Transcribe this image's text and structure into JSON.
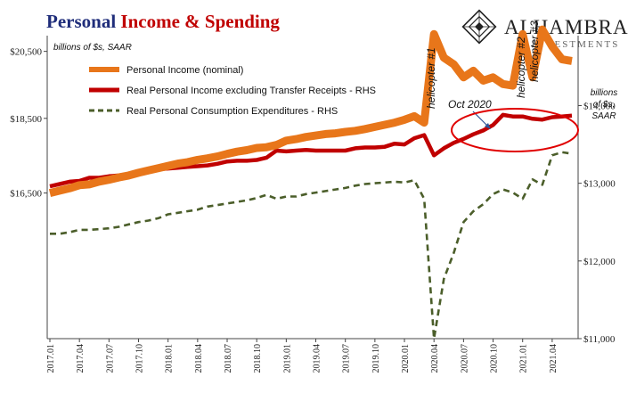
{
  "header": {
    "title_part1": "Personal ",
    "title_part2": "Income & Spending",
    "title_color1": "#1f2d7a",
    "title_color2": "#c00000",
    "logo_text": "ALHAMBRA",
    "logo_sub": "INVESTMENTS"
  },
  "chart_data": {
    "type": "line",
    "left_axis_units": "billions of $s, SAAR",
    "right_axis_units": [
      "billions",
      "of $s,",
      "SAAR"
    ],
    "left_ticks": [
      "$20,500",
      "$18,500",
      "$16,500"
    ],
    "right_ticks": [
      "$14,000",
      "$13,000",
      "$12,000",
      "$11,000"
    ],
    "x_ticks": [
      "2017.01",
      "2017.04",
      "2017.07",
      "2017.10",
      "2018.01",
      "2018.04",
      "2018.07",
      "2018.10",
      "2019.01",
      "2019.04",
      "2019.07",
      "2019.10",
      "2020.01",
      "2020.04",
      "2020.07",
      "2020.10",
      "2021.01",
      "2021.04"
    ],
    "left_axis": {
      "min": 13200,
      "max": 21000,
      "log": true,
      "ticks": [
        20500,
        18500,
        16500
      ]
    },
    "right_axis": {
      "min": 11000,
      "max": 14900,
      "ticks": [
        14000,
        13000,
        12000,
        11000
      ]
    },
    "x": [
      "2017.01",
      "2017.02",
      "2017.03",
      "2017.04",
      "2017.05",
      "2017.06",
      "2017.07",
      "2017.08",
      "2017.09",
      "2017.10",
      "2017.11",
      "2017.12",
      "2018.01",
      "2018.02",
      "2018.03",
      "2018.04",
      "2018.05",
      "2018.06",
      "2018.07",
      "2018.08",
      "2018.09",
      "2018.10",
      "2018.11",
      "2018.12",
      "2019.01",
      "2019.02",
      "2019.03",
      "2019.04",
      "2019.05",
      "2019.06",
      "2019.07",
      "2019.08",
      "2019.09",
      "2019.10",
      "2019.11",
      "2019.12",
      "2020.01",
      "2020.02",
      "2020.03",
      "2020.04",
      "2020.05",
      "2020.06",
      "2020.07",
      "2020.08",
      "2020.09",
      "2020.10",
      "2020.11",
      "2020.12",
      "2021.01",
      "2021.02",
      "2021.03",
      "2021.04",
      "2021.05",
      "2021.06"
    ],
    "series": [
      {
        "name": "Personal Income (nominal)",
        "axis": "left",
        "color": "#e8761a",
        "style": "solid",
        "values": [
          16500,
          16560,
          16620,
          16700,
          16720,
          16790,
          16840,
          16900,
          16950,
          17020,
          17080,
          17140,
          17200,
          17260,
          17300,
          17360,
          17400,
          17450,
          17520,
          17580,
          17620,
          17680,
          17700,
          17760,
          17880,
          17920,
          17980,
          18020,
          18060,
          18080,
          18120,
          18150,
          18200,
          18260,
          18320,
          18380,
          18460,
          18560,
          18380,
          21050,
          20300,
          20100,
          19700,
          19900,
          19600,
          19700,
          19500,
          19450,
          21050,
          19700,
          21200,
          20650,
          20250,
          20200
        ]
      },
      {
        "name": "Real Personal Income excluding Transfer Receipts - RHS",
        "axis": "right",
        "color": "#c00000",
        "style": "solid",
        "values": [
          12960,
          12990,
          13020,
          13030,
          13070,
          13070,
          13090,
          13100,
          13120,
          13140,
          13160,
          13180,
          13190,
          13200,
          13210,
          13220,
          13230,
          13250,
          13280,
          13290,
          13290,
          13300,
          13330,
          13420,
          13410,
          13420,
          13430,
          13420,
          13420,
          13420,
          13420,
          13450,
          13460,
          13460,
          13470,
          13510,
          13500,
          13580,
          13620,
          13360,
          13450,
          13520,
          13570,
          13630,
          13680,
          13750,
          13880,
          13860,
          13860,
          13830,
          13820,
          13850,
          13860,
          13870
        ]
      },
      {
        "name": "Real Personal Consumption Expenditures - RHS",
        "axis": "right",
        "color": "#4b5e2a",
        "style": "dashed",
        "values": [
          12350,
          12350,
          12370,
          12400,
          12400,
          12410,
          12420,
          12440,
          12470,
          12500,
          12520,
          12550,
          12600,
          12620,
          12640,
          12660,
          12700,
          12720,
          12740,
          12760,
          12780,
          12810,
          12850,
          12800,
          12830,
          12830,
          12860,
          12880,
          12900,
          12920,
          12940,
          12970,
          12990,
          13000,
          13010,
          13020,
          13010,
          13040,
          12800,
          11000,
          11770,
          12100,
          12500,
          12640,
          12730,
          12860,
          12920,
          12880,
          12800,
          13050,
          12980,
          13360,
          13400,
          13380
        ]
      }
    ],
    "annotations": [
      {
        "text": "helicopter #1"
      },
      {
        "text": "helicopter #2"
      },
      {
        "text": "helicopter #3"
      },
      {
        "text": "Oct 2020"
      }
    ],
    "legend_position": "top-left inside plot",
    "grid": false
  }
}
